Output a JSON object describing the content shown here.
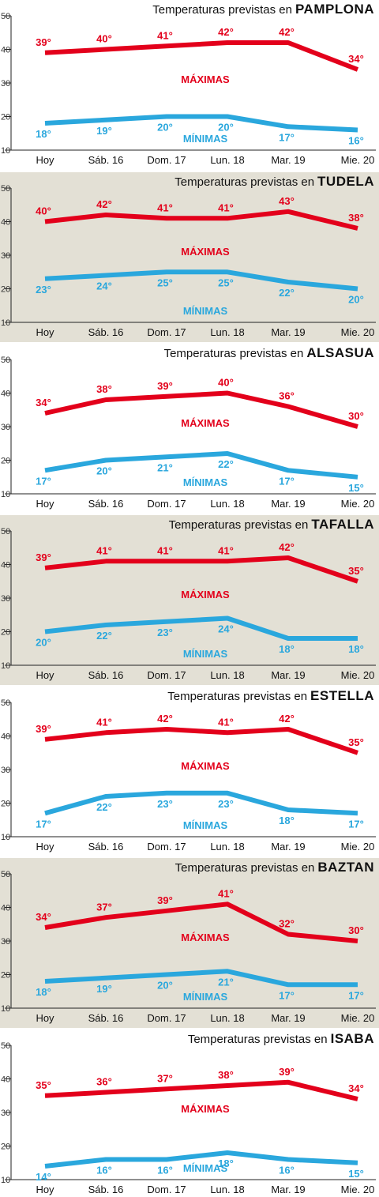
{
  "colors": {
    "max": "#e3001b",
    "min": "#2aa7dd",
    "panel_alt": "#e3e0d5",
    "panel": "#ffffff",
    "axis": "#222222",
    "grid": "#999999"
  },
  "chart_data": [
    {
      "type": "line",
      "title_prefix": "Temperaturas previstas en",
      "title": "PAMPLONA",
      "categories": [
        "Hoy",
        "Sáb. 16",
        "Dom. 17",
        "Lun. 18",
        "Mar. 19",
        "Mie. 20"
      ],
      "series": [
        {
          "name": "MÁXIMAS",
          "values": [
            39,
            40,
            41,
            42,
            42,
            34
          ]
        },
        {
          "name": "MÍNIMAS",
          "values": [
            18,
            19,
            20,
            20,
            17,
            16
          ]
        }
      ],
      "value_labels": {
        "max": [
          "39°",
          "40°",
          "41°",
          "42°",
          "42°",
          "34°"
        ],
        "min": [
          "18°",
          "19°",
          "20°",
          "20°",
          "17°",
          "16°"
        ]
      },
      "y_ticks": [
        "10",
        "20",
        "30",
        "40",
        "50"
      ],
      "ylim": [
        10,
        50
      ]
    },
    {
      "type": "line",
      "title_prefix": "Temperaturas previstas en",
      "title": "TUDELA",
      "categories": [
        "Hoy",
        "Sáb. 16",
        "Dom. 17",
        "Lun. 18",
        "Mar. 19",
        "Mie. 20"
      ],
      "series": [
        {
          "name": "MÁXIMAS",
          "values": [
            40,
            42,
            41,
            41,
            43,
            38
          ]
        },
        {
          "name": "MÍNIMAS",
          "values": [
            23,
            24,
            25,
            25,
            22,
            20
          ]
        }
      ],
      "value_labels": {
        "max": [
          "40°",
          "42°",
          "41°",
          "41°",
          "43°",
          "38°"
        ],
        "min": [
          "23°",
          "24°",
          "25°",
          "25°",
          "22°",
          "20°"
        ]
      },
      "y_ticks": [
        "10",
        "20",
        "30",
        "40",
        "50"
      ],
      "ylim": [
        10,
        50
      ]
    },
    {
      "type": "line",
      "title_prefix": "Temperaturas previstas en",
      "title": "ALSASUA",
      "categories": [
        "Hoy",
        "Sáb. 16",
        "Dom. 17",
        "Lun. 18",
        "Mar. 19",
        "Mie. 20"
      ],
      "series": [
        {
          "name": "MÁXIMAS",
          "values": [
            34,
            38,
            39,
            40,
            36,
            30
          ]
        },
        {
          "name": "MÍNIMAS",
          "values": [
            17,
            20,
            21,
            22,
            17,
            15
          ]
        }
      ],
      "value_labels": {
        "max": [
          "34°",
          "38°",
          "39°",
          "40°",
          "36°",
          "30°"
        ],
        "min": [
          "17°",
          "20°",
          "21°",
          "22°",
          "17°",
          "15°"
        ]
      },
      "y_ticks": [
        "10",
        "20",
        "30",
        "40",
        "50"
      ],
      "ylim": [
        10,
        50
      ]
    },
    {
      "type": "line",
      "title_prefix": "Temperaturas previstas en",
      "title": "TAFALLA",
      "categories": [
        "Hoy",
        "Sáb. 16",
        "Dom. 17",
        "Lun. 18",
        "Mar. 19",
        "Mie. 20"
      ],
      "series": [
        {
          "name": "MÁXIMAS",
          "values": [
            39,
            41,
            41,
            41,
            42,
            35
          ]
        },
        {
          "name": "MÍNIMAS",
          "values": [
            20,
            22,
            23,
            24,
            18,
            18
          ]
        }
      ],
      "value_labels": {
        "max": [
          "39°",
          "41°",
          "41°",
          "41°",
          "42°",
          "35°"
        ],
        "min": [
          "20°",
          "22°",
          "23°",
          "24°",
          "18°",
          "18°"
        ]
      },
      "y_ticks": [
        "10",
        "20",
        "30",
        "40",
        "50"
      ],
      "ylim": [
        10,
        50
      ]
    },
    {
      "type": "line",
      "title_prefix": "Temperaturas previstas en",
      "title": "ESTELLA",
      "categories": [
        "Hoy",
        "Sáb. 16",
        "Dom. 17",
        "Lun. 18",
        "Mar. 19",
        "Mie. 20"
      ],
      "series": [
        {
          "name": "MÁXIMAS",
          "values": [
            39,
            41,
            42,
            41,
            42,
            35
          ]
        },
        {
          "name": "MÍNIMAS",
          "values": [
            17,
            22,
            23,
            23,
            18,
            17
          ]
        }
      ],
      "value_labels": {
        "max": [
          "39°",
          "41°",
          "42°",
          "41°",
          "42°",
          "35°"
        ],
        "min": [
          "17°",
          "22°",
          "23°",
          "23°",
          "18°",
          "17°"
        ]
      },
      "y_ticks": [
        "10",
        "20",
        "30",
        "40",
        "50"
      ],
      "ylim": [
        10,
        50
      ]
    },
    {
      "type": "line",
      "title_prefix": "Temperaturas previstas en",
      "title": "BAZTAN",
      "categories": [
        "Hoy",
        "Sáb. 16",
        "Dom. 17",
        "Lun. 18",
        "Mar. 19",
        "Mie. 20"
      ],
      "series": [
        {
          "name": "MÁXIMAS",
          "values": [
            34,
            37,
            39,
            41,
            32,
            30
          ]
        },
        {
          "name": "MÍNIMAS",
          "values": [
            18,
            19,
            20,
            21,
            17,
            17
          ]
        }
      ],
      "value_labels": {
        "max": [
          "34°",
          "37°",
          "39°",
          "41°",
          "32°",
          "30°"
        ],
        "min": [
          "18°",
          "19°",
          "20°",
          "21°",
          "17°",
          "17°"
        ]
      },
      "y_ticks": [
        "10",
        "20",
        "30",
        "40",
        "50"
      ],
      "ylim": [
        10,
        50
      ]
    },
    {
      "type": "line",
      "title_prefix": "Temperaturas previstas en",
      "title": "ISABA",
      "categories": [
        "Hoy",
        "Sáb. 16",
        "Dom. 17",
        "Lun. 18",
        "Mar. 19",
        "Mie. 20"
      ],
      "series": [
        {
          "name": "MÁXIMAS",
          "values": [
            35,
            36,
            37,
            38,
            39,
            34
          ]
        },
        {
          "name": "MÍNIMAS",
          "values": [
            14,
            16,
            16,
            18,
            16,
            15
          ]
        }
      ],
      "value_labels": {
        "max": [
          "35°",
          "36°",
          "37°",
          "38°",
          "39°",
          "34°"
        ],
        "min": [
          "14°",
          "16°",
          "16°",
          "18°",
          "16°",
          "15°"
        ]
      },
      "y_ticks": [
        "10",
        "20",
        "30",
        "40",
        "50"
      ],
      "ylim": [
        10,
        50
      ]
    }
  ]
}
